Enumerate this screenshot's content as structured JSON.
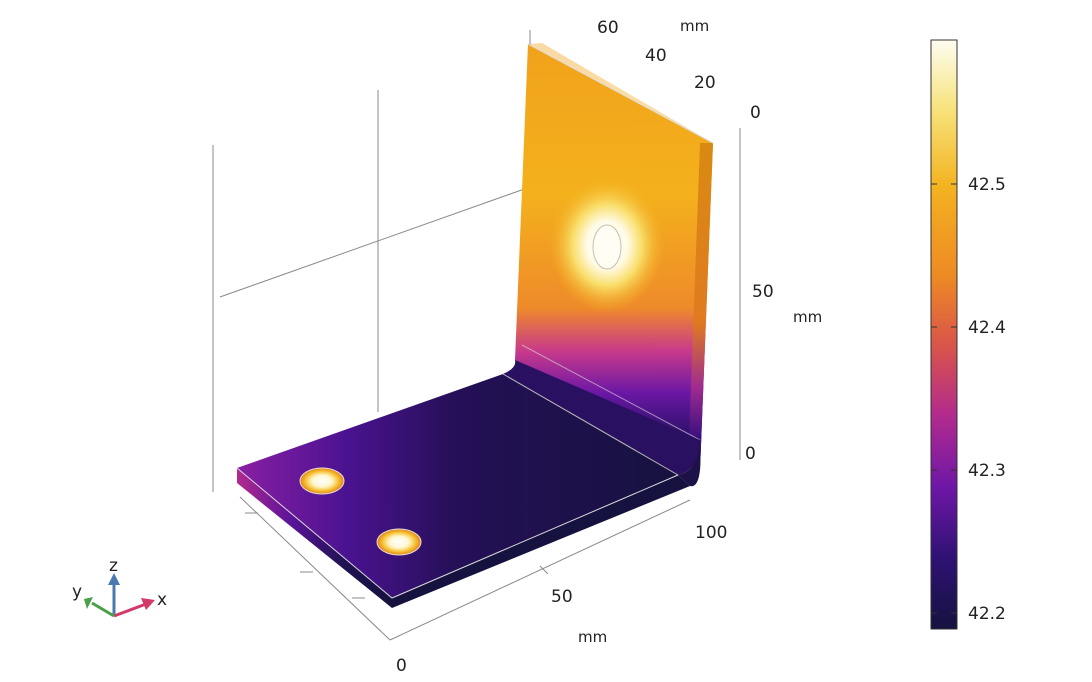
{
  "axes": {
    "y_ticks": [
      "60",
      "40",
      "20",
      "0"
    ],
    "y_unit": "mm",
    "z_ticks": [
      "50",
      "0"
    ],
    "z_unit": "mm",
    "x_ticks": [
      "100",
      "50",
      "0"
    ],
    "x_unit": "mm"
  },
  "colorbar": {
    "ticks": [
      "42.5",
      "42.4",
      "42.3",
      "42.2"
    ],
    "colormap": "plasma-like: dark navy → purple → magenta → orange → yellow → white",
    "colors": [
      "#1a1446",
      "#3b0f80",
      "#8a1fa4",
      "#c93a8a",
      "#ea6a3f",
      "#f3a21b",
      "#f7d54a",
      "#fdfdf0"
    ]
  },
  "triad": {
    "x": "x",
    "y": "y",
    "z": "z"
  }
}
